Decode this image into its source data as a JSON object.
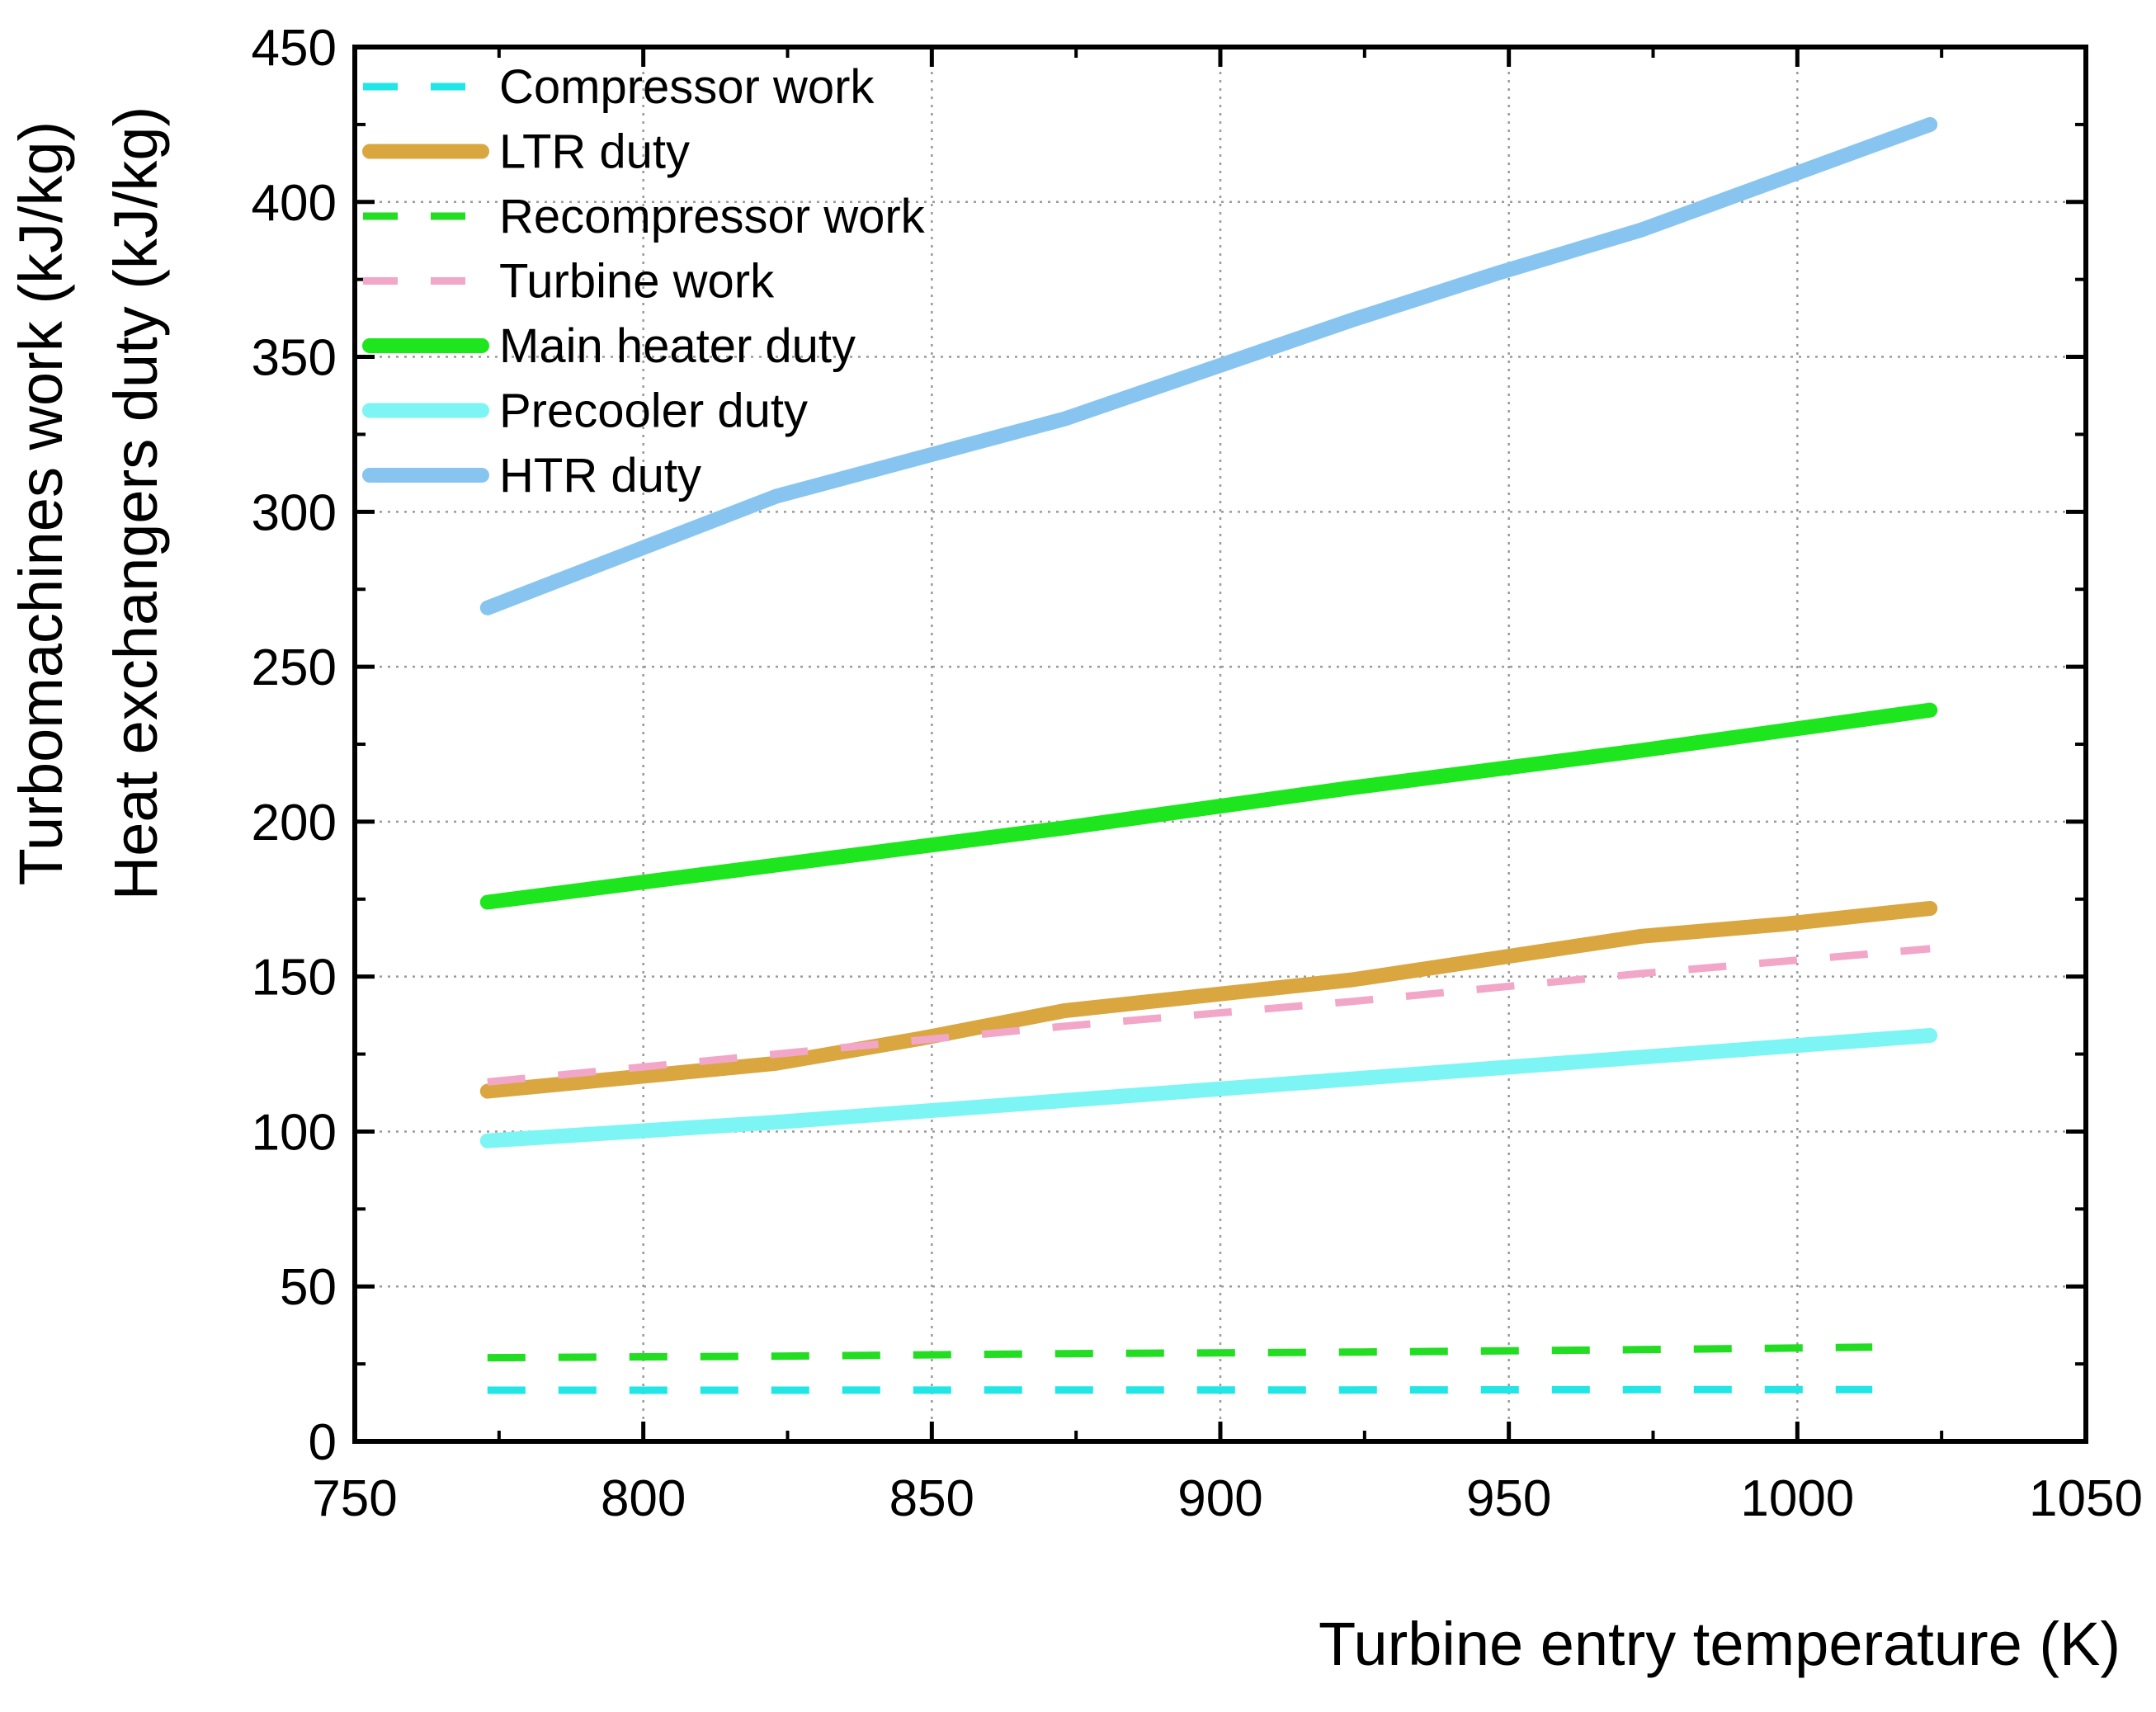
{
  "chart_data": {
    "type": "line",
    "xlabel": "Turbine entry temperature (K)",
    "ylabel_lines": [
      "Turbomachines work (kJ/kg)",
      "Heat exchangers duty (kJ/kg)"
    ],
    "xlim": [
      750,
      1050
    ],
    "ylim": [
      0,
      450
    ],
    "xticks": [
      750,
      800,
      850,
      900,
      950,
      1000,
      1050
    ],
    "yticks": [
      0,
      50,
      100,
      150,
      200,
      250,
      300,
      350,
      400,
      450
    ],
    "grid": true,
    "legend_position": "top-left",
    "series": [
      {
        "name": "Compressor work",
        "color": "#22e6e6",
        "style": "dashed",
        "width": "thin",
        "x": [
          773,
          823,
          873,
          923,
          973,
          1013
        ],
        "y": [
          16.5,
          16.5,
          16.6,
          16.6,
          16.7,
          16.7
        ]
      },
      {
        "name": "LTR duty",
        "color": "#d9a640",
        "style": "solid",
        "width": "thick",
        "x": [
          773,
          823,
          848,
          873,
          898,
          923,
          948,
          973,
          998,
          1023
        ],
        "y": [
          113,
          122,
          130,
          139,
          144,
          149,
          156,
          163,
          167,
          172
        ]
      },
      {
        "name": "Recompressor work",
        "color": "#22dd22",
        "style": "dashed",
        "width": "thin",
        "x": [
          773,
          823,
          873,
          923,
          973,
          1013
        ],
        "y": [
          27,
          27.5,
          28.3,
          28.8,
          29.6,
          30.4
        ]
      },
      {
        "name": "Turbine work",
        "color": "#f2a6c8",
        "style": "dashed",
        "width": "thin",
        "x": [
          773,
          823,
          873,
          923,
          973,
          1023
        ],
        "y": [
          116,
          125,
          134,
          142,
          151,
          159
        ]
      },
      {
        "name": "Main heater duty",
        "color": "#1ee61e",
        "style": "solid",
        "width": "thick",
        "x": [
          773,
          823,
          873,
          923,
          973,
          1023
        ],
        "y": [
          174,
          186,
          198,
          211,
          223,
          236
        ]
      },
      {
        "name": "Precooler duty",
        "color": "#7df5f5",
        "style": "solid",
        "width": "thick",
        "x": [
          773,
          823,
          873,
          923,
          973,
          1023
        ],
        "y": [
          97,
          103,
          110,
          117,
          124,
          131
        ]
      },
      {
        "name": "HTR duty",
        "color": "#87c5f0",
        "style": "solid",
        "width": "thick",
        "x": [
          773,
          823,
          873,
          898,
          923,
          948,
          973,
          1023
        ],
        "y": [
          269,
          305,
          330,
          346,
          362,
          377,
          391,
          425
        ]
      }
    ]
  }
}
